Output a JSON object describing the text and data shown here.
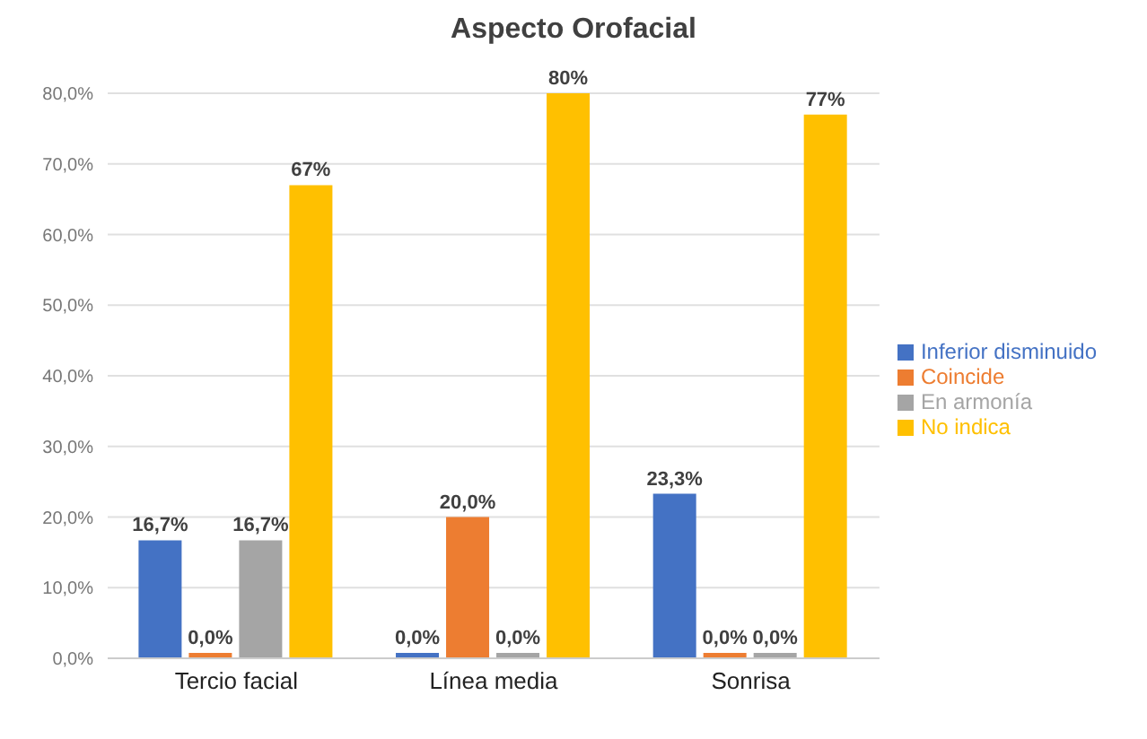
{
  "chart_data": {
    "type": "bar",
    "title": "Aspecto Orofacial",
    "categories": [
      "Tercio facial",
      "Línea media",
      "Sonrisa"
    ],
    "series": [
      {
        "name": "Inferior disminuido",
        "color": "#4472c4",
        "values": [
          16.7,
          0,
          23.3
        ],
        "value_labels": [
          "16,7%",
          "0,0%",
          "23,3%"
        ]
      },
      {
        "name": "Coincide",
        "color": "#ed7d31",
        "values": [
          0,
          20,
          0
        ],
        "value_labels": [
          "0,0%",
          "20,0%",
          "0,0%"
        ]
      },
      {
        "name": "En armonía",
        "color": "#a5a5a5",
        "values": [
          16.7,
          0,
          0
        ],
        "value_labels": [
          "16,7%",
          "0,0%",
          "0,0%"
        ]
      },
      {
        "name": "No indica",
        "color": "#ffc000",
        "values": [
          67,
          80,
          77
        ],
        "value_labels": [
          "67%",
          "80%",
          "77%"
        ]
      }
    ],
    "ylim": [
      0,
      80
    ],
    "yticks": [
      {
        "value": 0,
        "label": "0,0%"
      },
      {
        "value": 10,
        "label": "10,0%"
      },
      {
        "value": 20,
        "label": "20,0%"
      },
      {
        "value": 30,
        "label": "30,0%"
      },
      {
        "value": 40,
        "label": "40,0%"
      },
      {
        "value": 50,
        "label": "50,0%"
      },
      {
        "value": 60,
        "label": "60,0%"
      },
      {
        "value": 70,
        "label": "70,0%"
      },
      {
        "value": 80,
        "label": "80,0%"
      }
    ],
    "grid": "y",
    "legend": "right"
  }
}
